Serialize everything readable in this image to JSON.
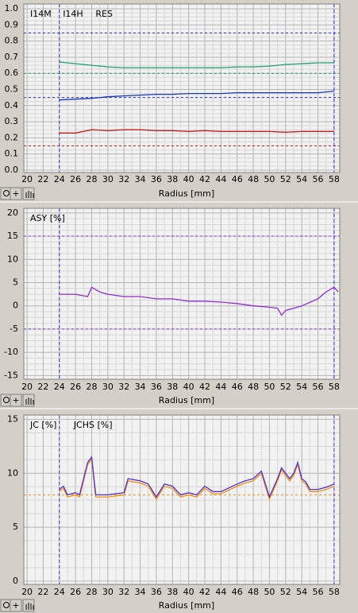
{
  "chart_data": [
    {
      "type": "line",
      "xlabel": "Radius [mm]",
      "x": [
        24,
        26,
        28,
        30,
        32,
        34,
        36,
        38,
        40,
        42,
        44,
        46,
        48,
        50,
        52,
        54,
        56,
        58
      ],
      "series": [
        {
          "name": "I14M",
          "color": "#20a070",
          "values": [
            0.67,
            0.66,
            0.65,
            0.64,
            0.635,
            0.635,
            0.635,
            0.635,
            0.635,
            0.635,
            0.635,
            0.64,
            0.64,
            0.645,
            0.655,
            0.66,
            0.665,
            0.665
          ]
        },
        {
          "name": "I14H",
          "color": "#1838c0",
          "values": [
            0.435,
            0.44,
            0.445,
            0.455,
            0.46,
            0.465,
            0.47,
            0.47,
            0.475,
            0.475,
            0.475,
            0.48,
            0.48,
            0.48,
            0.48,
            0.48,
            0.48,
            0.49
          ]
        },
        {
          "name": "RES",
          "color": "#c02020",
          "values": [
            0.23,
            0.23,
            0.25,
            0.245,
            0.25,
            0.25,
            0.245,
            0.245,
            0.24,
            0.245,
            0.24,
            0.24,
            0.24,
            0.24,
            0.235,
            0.24,
            0.24,
            0.24
          ]
        }
      ],
      "ref_lines": [
        {
          "value": 0.85,
          "color": "#3030d0"
        },
        {
          "value": 0.6,
          "color": "#20a070"
        },
        {
          "value": 0.45,
          "color": "#3030d0"
        },
        {
          "value": 0.15,
          "color": "#c02020"
        }
      ],
      "x_refs": [
        {
          "value": 24,
          "color": "#3030d0"
        },
        {
          "value": 58,
          "color": "#3030d0"
        }
      ],
      "xlim": [
        19.6,
        58.7
      ],
      "ylim": [
        -0.015,
        1.03
      ],
      "xticks": [
        20,
        22,
        24,
        26,
        28,
        30,
        32,
        34,
        36,
        38,
        40,
        42,
        44,
        46,
        48,
        50,
        52,
        54,
        56,
        58
      ],
      "yticks": [
        {
          "value": 0,
          "label": "0.0"
        },
        0.1,
        0.2,
        0.3,
        0.4,
        0.5,
        0.6,
        0.7,
        0.8,
        0.9,
        {
          "value": 1,
          "label": "1.0"
        }
      ],
      "grid": true
    },
    {
      "type": "line",
      "xlabel": "Radius [mm]",
      "x": [
        24,
        26,
        27.5,
        28,
        29,
        30,
        32,
        34,
        36,
        38,
        40,
        42,
        44,
        46,
        48,
        50,
        51,
        51.5,
        52,
        54,
        56,
        57,
        58,
        58.5
      ],
      "series": [
        {
          "name": "ASY [%]",
          "color": "#9030d0",
          "values": [
            2.5,
            2.5,
            2,
            4,
            3,
            2.5,
            2,
            2,
            1.5,
            1.5,
            1,
            1,
            0.8,
            0.5,
            0,
            -0.3,
            -0.5,
            -2,
            -1,
            0,
            1.5,
            3,
            4,
            3
          ]
        }
      ],
      "ref_lines": [
        {
          "value": 15,
          "color": "#9030d0"
        },
        {
          "value": -5,
          "color": "#9030d0"
        }
      ],
      "x_refs": [
        {
          "value": 24,
          "color": "#3030d0"
        },
        {
          "value": 58,
          "color": "#3030d0"
        }
      ],
      "xlim": [
        19.6,
        58.7
      ],
      "ylim": [
        -15.8,
        21
      ],
      "xticks": [
        20,
        22,
        24,
        26,
        28,
        30,
        32,
        34,
        36,
        38,
        40,
        42,
        44,
        46,
        48,
        50,
        52,
        54,
        56,
        58
      ],
      "yticks": [
        -15,
        -10,
        -5,
        0,
        5,
        10,
        15,
        20
      ],
      "grid": true
    },
    {
      "type": "line",
      "xlabel": "Radius [mm]",
      "x": [
        24,
        24.5,
        25,
        26,
        26.5,
        27,
        27.5,
        28,
        28.5,
        30,
        32,
        32.5,
        34,
        35,
        36,
        37,
        38,
        39,
        40,
        41,
        42,
        43,
        44,
        46,
        47,
        48,
        49,
        50,
        51,
        51.5,
        52,
        52.5,
        53,
        53.5,
        54,
        54.5,
        55,
        56,
        57,
        58
      ],
      "series": [
        {
          "name": "JC [%]",
          "color": "#f09010",
          "values": [
            8.3,
            8.6,
            7.8,
            8,
            7.8,
            9.3,
            10.8,
            11.3,
            7.8,
            7.8,
            8,
            9.3,
            9.1,
            8.8,
            7.6,
            8.8,
            8.6,
            7.8,
            8,
            7.8,
            8.6,
            8.1,
            8.1,
            8.8,
            9.1,
            9.3,
            10,
            7.6,
            9.3,
            10.3,
            9.8,
            9.3,
            9.8,
            10.8,
            9.3,
            9,
            8.3,
            8.3,
            8.5,
            8.8
          ]
        },
        {
          "name": "JCHS [%]",
          "color": "#5030d0",
          "values": [
            8.5,
            8.8,
            8,
            8.2,
            8,
            9.5,
            11,
            11.5,
            8,
            8,
            8.2,
            9.5,
            9.3,
            9,
            7.8,
            9,
            8.8,
            8,
            8.2,
            8,
            8.8,
            8.3,
            8.3,
            9,
            9.3,
            9.5,
            10.2,
            7.8,
            9.5,
            10.5,
            10,
            9.5,
            10,
            11,
            9.5,
            9.2,
            8.5,
            8.5,
            8.7,
            9
          ]
        }
      ],
      "ref_lines": [
        {
          "value": 8,
          "color": "#f09010"
        }
      ],
      "x_refs": [
        {
          "value": 24,
          "color": "#5030d0"
        },
        {
          "value": 58,
          "color": "#5030d0"
        }
      ],
      "xlim": [
        19.6,
        58.7
      ],
      "ylim": [
        -0.3,
        15.4
      ],
      "xticks": [
        20,
        22,
        24,
        26,
        28,
        30,
        32,
        34,
        36,
        38,
        40,
        42,
        44,
        46,
        48,
        50,
        52,
        54,
        56,
        58
      ],
      "yticks": [
        0,
        5,
        10,
        15
      ],
      "grid": true
    }
  ]
}
